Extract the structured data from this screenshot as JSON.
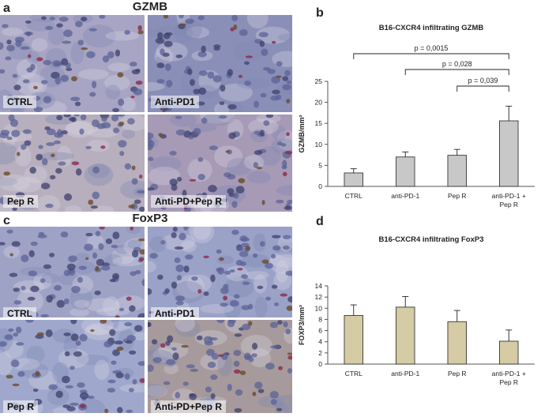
{
  "panels": {
    "a": {
      "letter": "a",
      "heading": "GZMB"
    },
    "b": {
      "letter": "b"
    },
    "c": {
      "letter": "c",
      "heading": "FoxP3"
    },
    "d": {
      "letter": "d"
    }
  },
  "micrographs": {
    "gzmb": [
      {
        "label": "CTRL",
        "tint": "#a8a5c4"
      },
      {
        "label": "Anti-PD1",
        "tint": "#8a8fb8"
      },
      {
        "label": "Pep R",
        "tint": "#b7aebe"
      },
      {
        "label": "Anti-PD+Pep R",
        "tint": "#a69ab6"
      }
    ],
    "foxp3": [
      {
        "label": "CTRL",
        "tint": "#9ea3c6"
      },
      {
        "label": "Anti-PD1",
        "tint": "#9aa2c8"
      },
      {
        "label": "Pep R",
        "tint": "#9fa8cc"
      },
      {
        "label": "Anti-PD+Pep R",
        "tint": "#a79a9c"
      }
    ]
  },
  "chart_data": [
    {
      "type": "bar",
      "title": "B16-CXCR4  infiltrating GZMB",
      "ylabel": "GZMB/mm²",
      "xlabel": "",
      "categories": [
        "CTRL",
        "anti-PD-1",
        "Pep R",
        "anti-PD-1 + Pep R"
      ],
      "values": [
        3.2,
        7.0,
        7.4,
        15.6
      ],
      "errors": [
        1.0,
        1.2,
        1.4,
        3.5
      ],
      "ylim": [
        0,
        25
      ],
      "yticks": [
        "0",
        "5",
        "10",
        "15",
        "20",
        "25"
      ],
      "bar_color": "#c8c8c8",
      "significance": [
        {
          "from": 0,
          "to": 3,
          "label": "p = 0,0015"
        },
        {
          "from": 1,
          "to": 3,
          "label": "p = 0,028"
        },
        {
          "from": 2,
          "to": 3,
          "label": "p = 0,039"
        }
      ]
    },
    {
      "type": "bar",
      "title": "B16-CXCR4  infiltrating FoxP3",
      "ylabel": "FOXP3/mm²",
      "xlabel": "",
      "categories": [
        "CTRL",
        "anti-PD-1",
        "Pep R",
        "anti-PD-1 + Pep R"
      ],
      "values": [
        8.7,
        10.2,
        7.6,
        4.1
      ],
      "errors": [
        1.9,
        1.9,
        2.0,
        2.0
      ],
      "ylim": [
        0,
        14
      ],
      "yticks": [
        "0",
        "2",
        "4",
        "6",
        "8",
        "10",
        "12",
        "14"
      ],
      "bar_color": "#d5cba4",
      "significance": []
    }
  ]
}
